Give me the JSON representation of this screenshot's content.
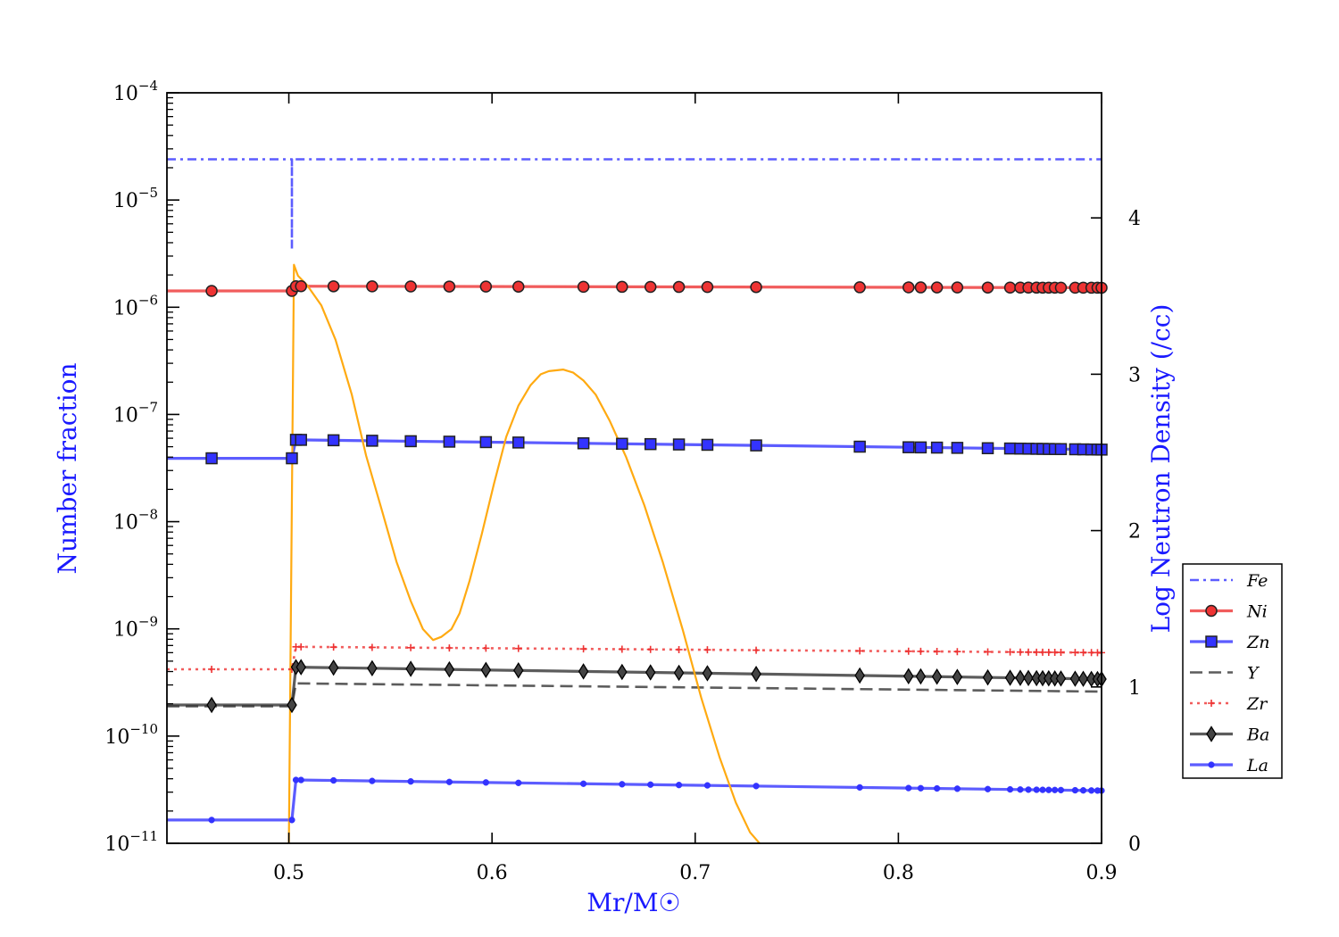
{
  "chart_data": {
    "type": "line",
    "xlabel": "Mr/M☉",
    "ylabel_left": "Number fraction",
    "ylabel_right": "Log Neutron Density (/cc)",
    "xlim": [
      0.44,
      0.9
    ],
    "ylim_left": [
      1e-11,
      0.0001
    ],
    "yscale_left": "log",
    "ylim_right": [
      0,
      4.8
    ],
    "x_ticks": [
      {
        "v": 0.5,
        "label": "0.5"
      },
      {
        "v": 0.6,
        "label": "0.6"
      },
      {
        "v": 0.7,
        "label": "0.7"
      },
      {
        "v": 0.8,
        "label": "0.8"
      },
      {
        "v": 0.9,
        "label": "0.9"
      }
    ],
    "y_ticks_left": [
      {
        "v": 1e-11,
        "base": "10",
        "exp": "−11"
      },
      {
        "v": 1e-10,
        "base": "10",
        "exp": "−10"
      },
      {
        "v": 1e-09,
        "base": "10",
        "exp": "−9"
      },
      {
        "v": 1e-08,
        "base": "10",
        "exp": "−8"
      },
      {
        "v": 1e-07,
        "base": "10",
        "exp": "−7"
      },
      {
        "v": 1e-06,
        "base": "10",
        "exp": "−6"
      },
      {
        "v": 1e-05,
        "base": "10",
        "exp": "−5"
      },
      {
        "v": 0.0001,
        "base": "10",
        "exp": "−4"
      }
    ],
    "y_ticks_right": [
      {
        "v": 0,
        "label": "0"
      },
      {
        "v": 1,
        "label": "1"
      },
      {
        "v": 2,
        "label": "2"
      },
      {
        "v": 3,
        "label": "3"
      },
      {
        "v": 4,
        "label": "4"
      }
    ],
    "legend_position": "right",
    "series": [
      {
        "name": "Fe",
        "color": "#3333ff",
        "style": "dashdot",
        "marker": "none",
        "x": [
          0.44,
          0.5015,
          0.5015,
          0.5015,
          0.9
        ],
        "y": [
          2.4e-05,
          2.4e-05,
          3.5e-06,
          2.4e-05,
          2.4e-05
        ]
      },
      {
        "name": "Ni",
        "color": "#ee3333",
        "style": "solid",
        "marker": "circle",
        "x": [
          0.44,
          0.5015,
          0.5035,
          0.9
        ],
        "y": [
          1.42e-06,
          1.42e-06,
          1.57e-06,
          1.52e-06
        ]
      },
      {
        "name": "Zn",
        "color": "#3333ff",
        "style": "solid",
        "marker": "square",
        "x": [
          0.44,
          0.5015,
          0.5035,
          0.9
        ],
        "y": [
          3.9e-08,
          3.9e-08,
          5.8e-08,
          4.7e-08
        ]
      },
      {
        "name": "Y",
        "color": "#333333",
        "style": "dashed",
        "marker": "none",
        "x": [
          0.44,
          0.5015,
          0.5035,
          0.9
        ],
        "y": [
          1.9e-10,
          1.9e-10,
          3.1e-10,
          2.6e-10
        ]
      },
      {
        "name": "Zr",
        "color": "#ee3333",
        "style": "dotted",
        "marker": "plus",
        "x": [
          0.44,
          0.5015,
          0.5035,
          0.9
        ],
        "y": [
          4.2e-10,
          4.2e-10,
          6.8e-10,
          6e-10
        ]
      },
      {
        "name": "Ba",
        "color": "#333333",
        "style": "solid",
        "marker": "diamond",
        "x": [
          0.44,
          0.5015,
          0.5035,
          0.9
        ],
        "y": [
          1.95e-10,
          1.95e-10,
          4.4e-10,
          3.4e-10
        ]
      },
      {
        "name": "La",
        "color": "#3333ff",
        "style": "solid",
        "marker": "dot",
        "x": [
          0.44,
          0.5015,
          0.5035,
          0.9
        ],
        "y": [
          1.65e-11,
          1.65e-11,
          3.9e-11,
          3.1e-11
        ]
      }
    ],
    "marker_x": [
      0.462,
      0.5015,
      0.5035,
      0.506,
      0.522,
      0.541,
      0.56,
      0.579,
      0.597,
      0.613,
      0.645,
      0.664,
      0.678,
      0.692,
      0.706,
      0.73,
      0.781,
      0.805,
      0.811,
      0.819,
      0.829,
      0.844,
      0.855,
      0.86,
      0.864,
      0.868,
      0.871,
      0.874,
      0.877,
      0.88,
      0.887,
      0.891,
      0.895,
      0.898,
      0.9
    ],
    "neutron_density": {
      "axis": "right",
      "color": "#ffaa11",
      "x": [
        0.5,
        0.5025,
        0.5045,
        0.509,
        0.516,
        0.523,
        0.531,
        0.538,
        0.546,
        0.553,
        0.56,
        0.566,
        0.571,
        0.575,
        0.58,
        0.584,
        0.589,
        0.595,
        0.601,
        0.607,
        0.613,
        0.619,
        0.624,
        0.628,
        0.635,
        0.64,
        0.645,
        0.651,
        0.658,
        0.666,
        0.675,
        0.684,
        0.694,
        0.703,
        0.712,
        0.72,
        0.727,
        0.733,
        0.735
      ],
      "y": [
        0.0,
        3.7,
        3.63,
        3.57,
        3.44,
        3.22,
        2.87,
        2.48,
        2.12,
        1.8,
        1.55,
        1.37,
        1.3,
        1.32,
        1.37,
        1.47,
        1.68,
        1.98,
        2.3,
        2.6,
        2.8,
        2.93,
        3.0,
        3.02,
        3.03,
        3.01,
        2.96,
        2.87,
        2.7,
        2.47,
        2.16,
        1.8,
        1.36,
        0.93,
        0.55,
        0.26,
        0.07,
        -0.02,
        -0.04
      ]
    }
  }
}
